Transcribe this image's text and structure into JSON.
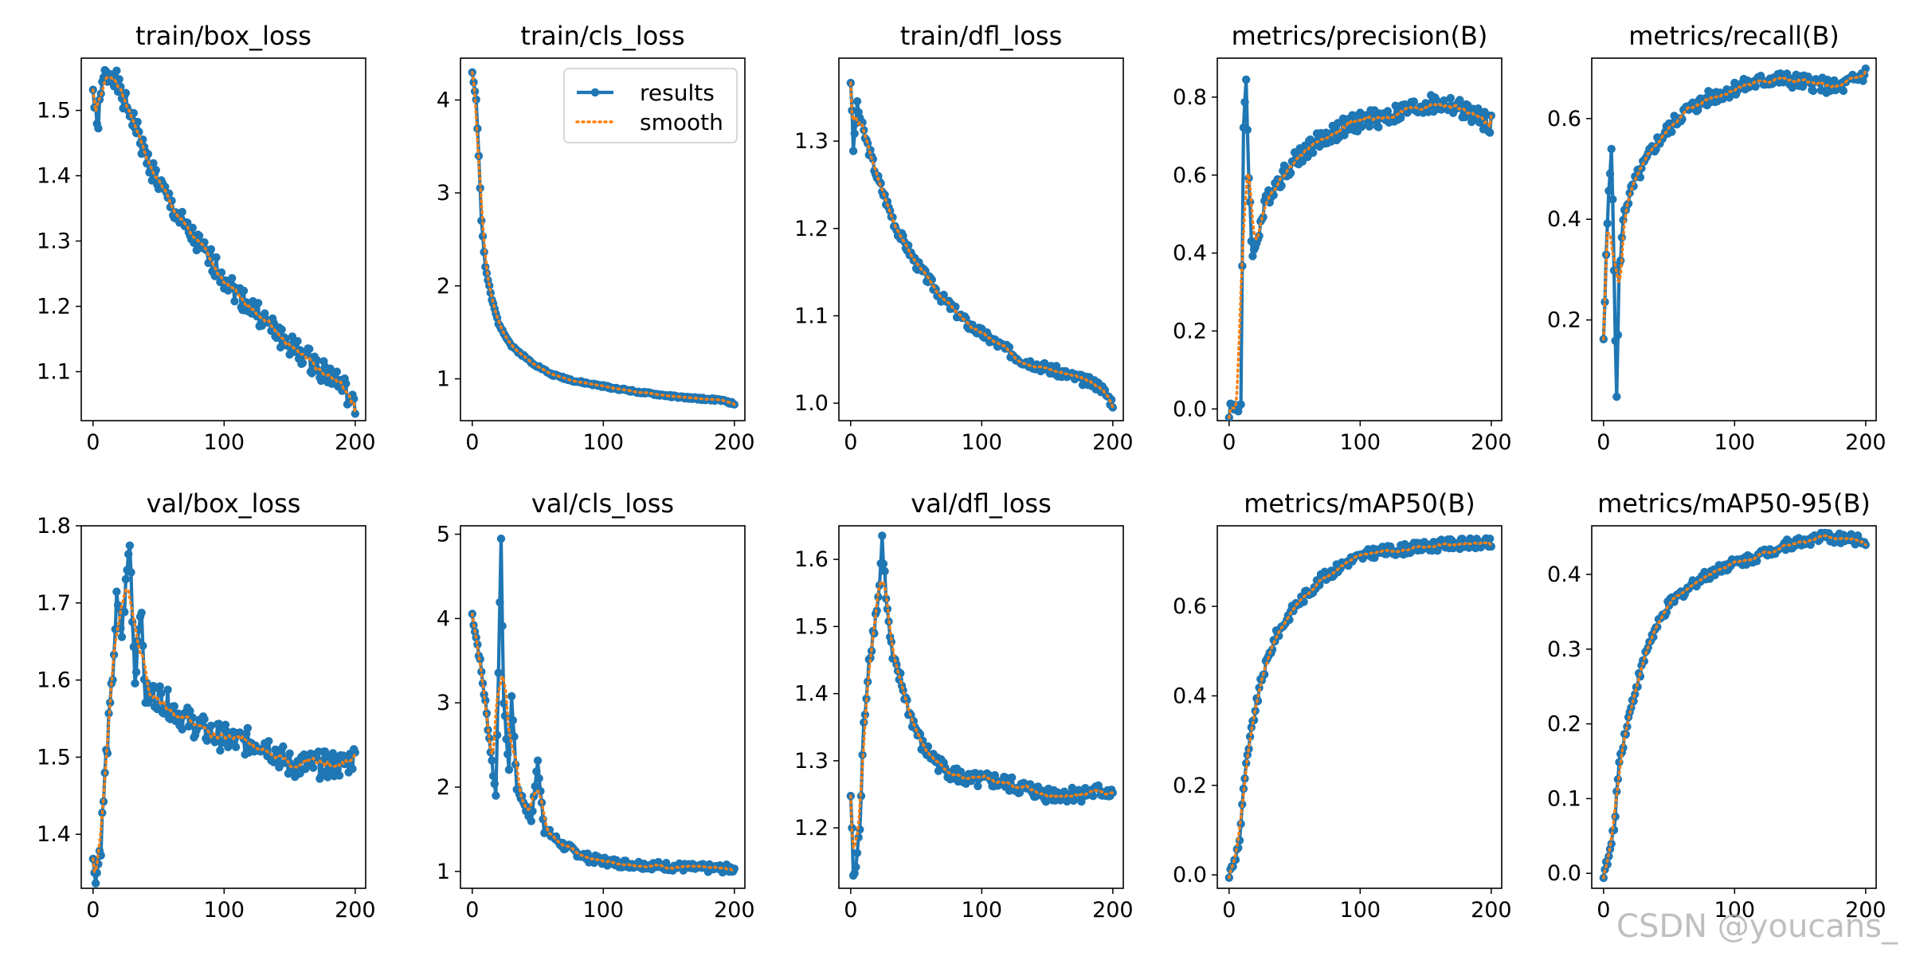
{
  "colors": {
    "results": "#1f77b4",
    "smooth": "#ff7f0e"
  },
  "watermark": "CSDN @youcans_",
  "legend": {
    "results": "results",
    "smooth": "smooth"
  },
  "chart_data": [
    {
      "type": "line",
      "title": "train/box_loss",
      "x": [
        0,
        200
      ],
      "xticks": [
        0,
        100,
        200
      ],
      "xlim": [
        -9,
        208
      ],
      "ylim": [
        1.025,
        1.58
      ],
      "yticks": [
        1.1,
        1.2,
        1.3,
        1.4,
        1.5
      ],
      "ytick_decimals": 1,
      "keypoints": [
        [
          0,
          1.53
        ],
        [
          3,
          1.47
        ],
        [
          8,
          1.55
        ],
        [
          15,
          1.56
        ],
        [
          22,
          1.52
        ],
        [
          30,
          1.49
        ],
        [
          40,
          1.43
        ],
        [
          55,
          1.37
        ],
        [
          70,
          1.32
        ],
        [
          90,
          1.27
        ],
        [
          110,
          1.22
        ],
        [
          130,
          1.18
        ],
        [
          150,
          1.14
        ],
        [
          170,
          1.11
        ],
        [
          190,
          1.08
        ],
        [
          200,
          1.04
        ]
      ],
      "noise": 0.018,
      "seed": 1
    },
    {
      "type": "line",
      "title": "train/cls_loss",
      "x": [
        0,
        200
      ],
      "xticks": [
        0,
        100,
        200
      ],
      "xlim": [
        -9,
        208
      ],
      "ylim": [
        0.55,
        4.45
      ],
      "yticks": [
        1,
        2,
        3,
        4
      ],
      "ytick_decimals": 0,
      "keypoints": [
        [
          0,
          4.3
        ],
        [
          3,
          4.0
        ],
        [
          5,
          3.4
        ],
        [
          7,
          2.7
        ],
        [
          10,
          2.2
        ],
        [
          15,
          1.85
        ],
        [
          20,
          1.6
        ],
        [
          30,
          1.35
        ],
        [
          45,
          1.18
        ],
        [
          60,
          1.05
        ],
        [
          80,
          0.97
        ],
        [
          100,
          0.92
        ],
        [
          130,
          0.85
        ],
        [
          160,
          0.8
        ],
        [
          190,
          0.77
        ],
        [
          200,
          0.73
        ]
      ],
      "noise": 0.012,
      "seed": 2,
      "legend": true
    },
    {
      "type": "line",
      "title": "train/dfl_loss",
      "x": [
        0,
        200
      ],
      "xticks": [
        0,
        100,
        200
      ],
      "xlim": [
        -9,
        208
      ],
      "ylim": [
        0.98,
        1.395
      ],
      "yticks": [
        1.0,
        1.1,
        1.2,
        1.3
      ],
      "ytick_decimals": 1,
      "keypoints": [
        [
          0,
          1.37
        ],
        [
          2,
          1.29
        ],
        [
          5,
          1.34
        ],
        [
          10,
          1.31
        ],
        [
          20,
          1.26
        ],
        [
          35,
          1.2
        ],
        [
          50,
          1.16
        ],
        [
          70,
          1.12
        ],
        [
          90,
          1.09
        ],
        [
          110,
          1.07
        ],
        [
          130,
          1.05
        ],
        [
          150,
          1.04
        ],
        [
          170,
          1.03
        ],
        [
          190,
          1.02
        ],
        [
          200,
          1.0
        ]
      ],
      "noise": 0.006,
      "seed": 3
    },
    {
      "type": "line",
      "title": "metrics/precision(B)",
      "x": [
        0,
        200
      ],
      "xticks": [
        0,
        100,
        200
      ],
      "xlim": [
        -9,
        208
      ],
      "ylim": [
        -0.03,
        0.9
      ],
      "yticks": [
        0.0,
        0.2,
        0.4,
        0.6,
        0.8
      ],
      "ytick_decimals": 1,
      "keypoints": [
        [
          0,
          0.0
        ],
        [
          5,
          0.01
        ],
        [
          9,
          0.01
        ],
        [
          11,
          0.7
        ],
        [
          13,
          0.85
        ],
        [
          15,
          0.6
        ],
        [
          18,
          0.38
        ],
        [
          22,
          0.45
        ],
        [
          30,
          0.55
        ],
        [
          45,
          0.62
        ],
        [
          60,
          0.67
        ],
        [
          80,
          0.71
        ],
        [
          100,
          0.74
        ],
        [
          120,
          0.75
        ],
        [
          150,
          0.78
        ],
        [
          170,
          0.78
        ],
        [
          200,
          0.73
        ]
      ],
      "noise": 0.025,
      "seed": 4
    },
    {
      "type": "line",
      "title": "metrics/recall(B)",
      "x": [
        0,
        200
      ],
      "xticks": [
        0,
        100,
        200
      ],
      "xlim": [
        -9,
        208
      ],
      "ylim": [
        0.0,
        0.72
      ],
      "yticks": [
        0.2,
        0.4,
        0.6
      ],
      "ytick_decimals": 1,
      "keypoints": [
        [
          0,
          0.15
        ],
        [
          2,
          0.32
        ],
        [
          4,
          0.46
        ],
        [
          6,
          0.55
        ],
        [
          8,
          0.3
        ],
        [
          10,
          0.04
        ],
        [
          12,
          0.3
        ],
        [
          16,
          0.42
        ],
        [
          25,
          0.48
        ],
        [
          40,
          0.55
        ],
        [
          60,
          0.61
        ],
        [
          80,
          0.64
        ],
        [
          100,
          0.66
        ],
        [
          130,
          0.68
        ],
        [
          160,
          0.67
        ],
        [
          180,
          0.66
        ],
        [
          200,
          0.69
        ]
      ],
      "noise": 0.015,
      "seed": 5
    },
    {
      "type": "line",
      "title": "val/box_loss",
      "x": [
        0,
        200
      ],
      "xticks": [
        0,
        100,
        200
      ],
      "xlim": [
        -9,
        208
      ],
      "ylim": [
        1.33,
        1.8
      ],
      "yticks": [
        1.4,
        1.5,
        1.6,
        1.7,
        1.8
      ],
      "ytick_decimals": 1,
      "keypoints": [
        [
          0,
          1.36
        ],
        [
          3,
          1.35
        ],
        [
          6,
          1.39
        ],
        [
          10,
          1.5
        ],
        [
          14,
          1.58
        ],
        [
          18,
          1.7
        ],
        [
          22,
          1.66
        ],
        [
          28,
          1.78
        ],
        [
          32,
          1.6
        ],
        [
          36,
          1.7
        ],
        [
          40,
          1.58
        ],
        [
          50,
          1.58
        ],
        [
          70,
          1.55
        ],
        [
          90,
          1.53
        ],
        [
          110,
          1.52
        ],
        [
          130,
          1.52
        ],
        [
          150,
          1.49
        ],
        [
          170,
          1.49
        ],
        [
          190,
          1.49
        ],
        [
          200,
          1.5
        ]
      ],
      "noise": 0.018,
      "seed": 6
    },
    {
      "type": "line",
      "title": "val/cls_loss",
      "x": [
        0,
        200
      ],
      "xticks": [
        0,
        100,
        200
      ],
      "xlim": [
        -9,
        208
      ],
      "ylim": [
        0.8,
        5.1
      ],
      "yticks": [
        1,
        2,
        3,
        4,
        5
      ],
      "ytick_decimals": 0,
      "keypoints": [
        [
          0,
          4.05
        ],
        [
          5,
          3.6
        ],
        [
          10,
          3.0
        ],
        [
          15,
          2.3
        ],
        [
          18,
          1.9
        ],
        [
          22,
          4.9
        ],
        [
          24,
          3.0
        ],
        [
          28,
          2.2
        ],
        [
          30,
          3.1
        ],
        [
          34,
          2.0
        ],
        [
          40,
          1.8
        ],
        [
          45,
          1.6
        ],
        [
          50,
          2.3
        ],
        [
          55,
          1.5
        ],
        [
          70,
          1.3
        ],
        [
          90,
          1.15
        ],
        [
          110,
          1.1
        ],
        [
          140,
          1.07
        ],
        [
          170,
          1.04
        ],
        [
          200,
          1.03
        ]
      ],
      "noise": 0.05,
      "seed": 7
    },
    {
      "type": "line",
      "title": "val/dfl_loss",
      "x": [
        0,
        200
      ],
      "xticks": [
        0,
        100,
        200
      ],
      "xlim": [
        -9,
        208
      ],
      "ylim": [
        1.11,
        1.65
      ],
      "yticks": [
        1.2,
        1.3,
        1.4,
        1.5,
        1.6
      ],
      "ytick_decimals": 1,
      "keypoints": [
        [
          0,
          1.25
        ],
        [
          2,
          1.13
        ],
        [
          4,
          1.14
        ],
        [
          7,
          1.2
        ],
        [
          10,
          1.35
        ],
        [
          14,
          1.45
        ],
        [
          18,
          1.5
        ],
        [
          22,
          1.56
        ],
        [
          24,
          1.63
        ],
        [
          28,
          1.52
        ],
        [
          32,
          1.45
        ],
        [
          38,
          1.42
        ],
        [
          45,
          1.37
        ],
        [
          55,
          1.32
        ],
        [
          70,
          1.29
        ],
        [
          90,
          1.27
        ],
        [
          110,
          1.27
        ],
        [
          130,
          1.26
        ],
        [
          150,
          1.25
        ],
        [
          170,
          1.25
        ],
        [
          200,
          1.255
        ]
      ],
      "noise": 0.012,
      "seed": 8
    },
    {
      "type": "line",
      "title": "metrics/mAP50(B)",
      "x": [
        0,
        200
      ],
      "xticks": [
        0,
        100,
        200
      ],
      "xlim": [
        -9,
        208
      ],
      "ylim": [
        -0.03,
        0.78
      ],
      "yticks": [
        0.0,
        0.2,
        0.4,
        0.6
      ],
      "ytick_decimals": 1,
      "keypoints": [
        [
          0,
          0.0
        ],
        [
          4,
          0.03
        ],
        [
          8,
          0.08
        ],
        [
          12,
          0.22
        ],
        [
          18,
          0.34
        ],
        [
          25,
          0.44
        ],
        [
          35,
          0.53
        ],
        [
          50,
          0.6
        ],
        [
          70,
          0.66
        ],
        [
          90,
          0.7
        ],
        [
          110,
          0.72
        ],
        [
          140,
          0.73
        ],
        [
          170,
          0.74
        ],
        [
          200,
          0.74
        ]
      ],
      "noise": 0.012,
      "seed": 9
    },
    {
      "type": "line",
      "title": "metrics/mAP50-95(B)",
      "x": [
        0,
        200
      ],
      "xticks": [
        0,
        100,
        200
      ],
      "xlim": [
        -9,
        208
      ],
      "ylim": [
        -0.02,
        0.465
      ],
      "yticks": [
        0.0,
        0.1,
        0.2,
        0.3,
        0.4
      ],
      "ytick_decimals": 1,
      "keypoints": [
        [
          0,
          0.0
        ],
        [
          4,
          0.02
        ],
        [
          8,
          0.06
        ],
        [
          12,
          0.15
        ],
        [
          18,
          0.2
        ],
        [
          25,
          0.25
        ],
        [
          35,
          0.31
        ],
        [
          50,
          0.36
        ],
        [
          70,
          0.39
        ],
        [
          90,
          0.41
        ],
        [
          110,
          0.42
        ],
        [
          140,
          0.44
        ],
        [
          170,
          0.45
        ],
        [
          200,
          0.445
        ]
      ],
      "noise": 0.007,
      "seed": 10
    }
  ]
}
